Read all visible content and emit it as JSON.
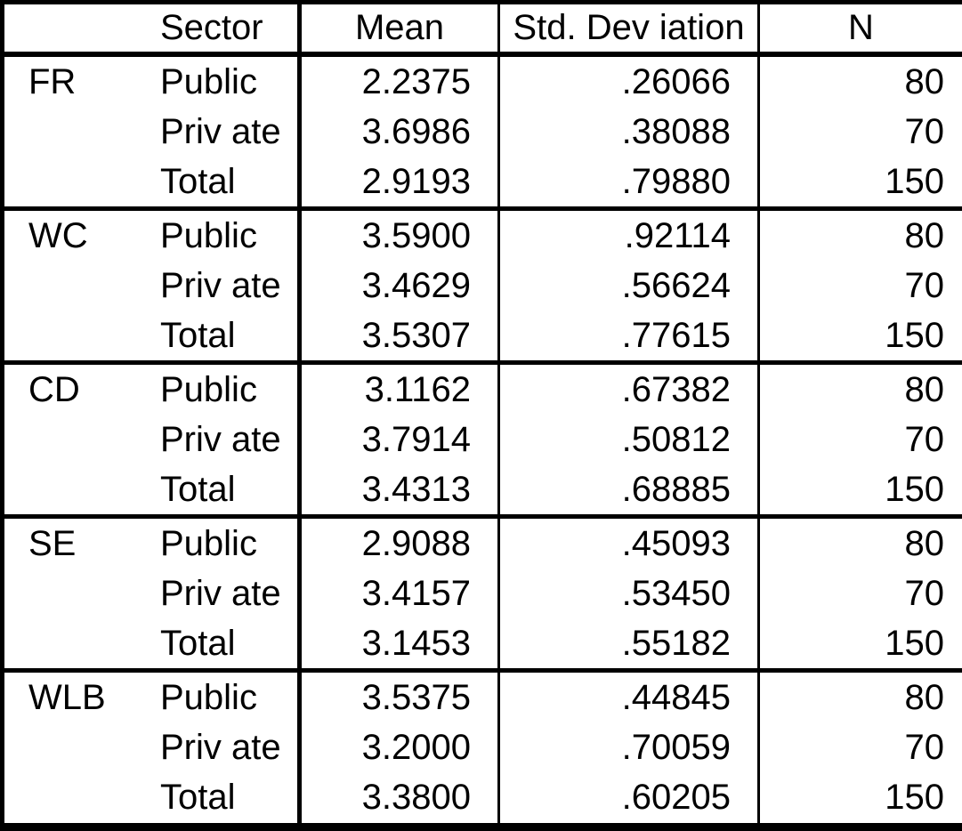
{
  "colors": {
    "background": "#ffffff",
    "border": "#000000",
    "text": "#000000"
  },
  "table": {
    "headers": {
      "group": "",
      "sector": "Sector",
      "mean": "Mean",
      "std_deviation": "Std. Dev iation",
      "n": "N"
    },
    "groups": [
      {
        "label": "FR",
        "rows": [
          {
            "sector": "Public",
            "mean": "2.2375",
            "std": ".26066",
            "n": "80"
          },
          {
            "sector": "Priv ate",
            "mean": "3.6986",
            "std": ".38088",
            "n": "70"
          },
          {
            "sector": "Total",
            "mean": "2.9193",
            "std": ".79880",
            "n": "150"
          }
        ]
      },
      {
        "label": "WC",
        "rows": [
          {
            "sector": "Public",
            "mean": "3.5900",
            "std": ".92114",
            "n": "80"
          },
          {
            "sector": "Priv ate",
            "mean": "3.4629",
            "std": ".56624",
            "n": "70"
          },
          {
            "sector": "Total",
            "mean": "3.5307",
            "std": ".77615",
            "n": "150"
          }
        ]
      },
      {
        "label": "CD",
        "rows": [
          {
            "sector": "Public",
            "mean": "3.1162",
            "std": ".67382",
            "n": "80"
          },
          {
            "sector": "Priv ate",
            "mean": "3.7914",
            "std": ".50812",
            "n": "70"
          },
          {
            "sector": "Total",
            "mean": "3.4313",
            "std": ".68885",
            "n": "150"
          }
        ]
      },
      {
        "label": "SE",
        "rows": [
          {
            "sector": "Public",
            "mean": "2.9088",
            "std": ".45093",
            "n": "80"
          },
          {
            "sector": "Priv ate",
            "mean": "3.4157",
            "std": ".53450",
            "n": "70"
          },
          {
            "sector": "Total",
            "mean": "3.1453",
            "std": ".55182",
            "n": "150"
          }
        ]
      },
      {
        "label": "WLB",
        "rows": [
          {
            "sector": "Public",
            "mean": "3.5375",
            "std": ".44845",
            "n": "80"
          },
          {
            "sector": "Priv ate",
            "mean": "3.2000",
            "std": ".70059",
            "n": "70"
          },
          {
            "sector": "Total",
            "mean": "3.3800",
            "std": ".60205",
            "n": "150"
          }
        ]
      }
    ]
  },
  "chart_data": {
    "type": "table",
    "title": "",
    "columns": [
      "",
      "Sector",
      "Mean",
      "Std. Deviation",
      "N"
    ],
    "rows": [
      [
        "FR",
        "Public",
        2.2375,
        0.26066,
        80
      ],
      [
        "FR",
        "Private",
        3.6986,
        0.38088,
        70
      ],
      [
        "FR",
        "Total",
        2.9193,
        0.7988,
        150
      ],
      [
        "WC",
        "Public",
        3.59,
        0.92114,
        80
      ],
      [
        "WC",
        "Private",
        3.4629,
        0.56624,
        70
      ],
      [
        "WC",
        "Total",
        3.5307,
        0.77615,
        150
      ],
      [
        "CD",
        "Public",
        3.1162,
        0.67382,
        80
      ],
      [
        "CD",
        "Private",
        3.7914,
        0.50812,
        70
      ],
      [
        "CD",
        "Total",
        3.4313,
        0.68885,
        150
      ],
      [
        "SE",
        "Public",
        2.9088,
        0.45093,
        80
      ],
      [
        "SE",
        "Private",
        3.4157,
        0.5345,
        70
      ],
      [
        "SE",
        "Total",
        3.1453,
        0.55182,
        150
      ],
      [
        "WLB",
        "Public",
        3.5375,
        0.44845,
        80
      ],
      [
        "WLB",
        "Private",
        3.2,
        0.70059,
        70
      ],
      [
        "WLB",
        "Total",
        3.38,
        0.60205,
        150
      ]
    ]
  }
}
